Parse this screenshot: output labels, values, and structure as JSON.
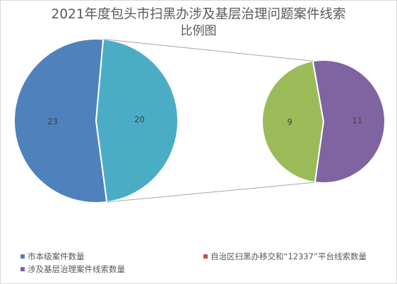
{
  "chart_data": {
    "type": "pie",
    "subtype": "pie-of-pie",
    "title_line1": "2021年度包头市扫黑办涉及基层治理问题案件线索",
    "title_line2": "比例图",
    "primary_pie": [
      {
        "name": "市本级案件数量",
        "value": 23,
        "color": "#4f81bd"
      },
      {
        "name": "涉及基层治理案件线索数量",
        "value": 20,
        "color": "#4bacc6"
      }
    ],
    "secondary_pie": [
      {
        "value": 9,
        "color": "#9bbb59"
      },
      {
        "value": 11,
        "color": "#8064a2"
      }
    ],
    "legend": [
      {
        "label": "市本级案件数量",
        "color": "#4f81bd"
      },
      {
        "label": "自治区扫黑办移交和“12337”平台线索数量",
        "color": "#c0504d"
      },
      {
        "label": "涉及基层治理案件线索数量",
        "color": "#8064a2"
      }
    ]
  }
}
